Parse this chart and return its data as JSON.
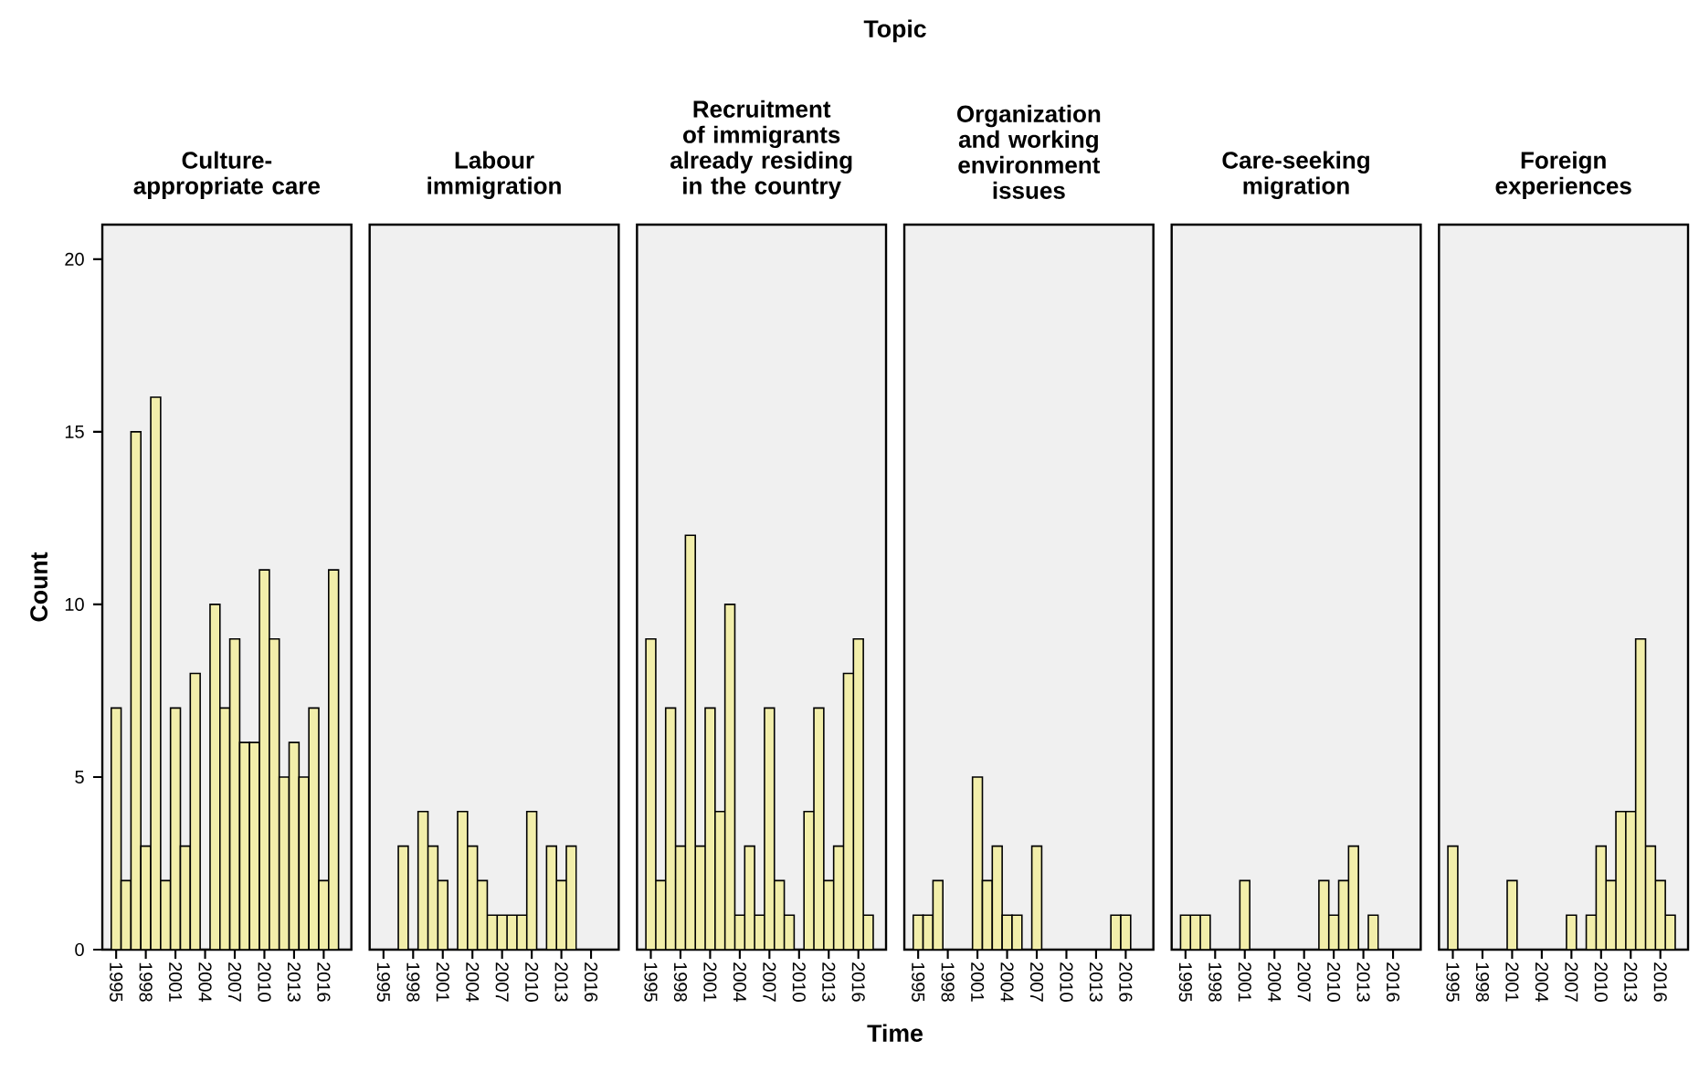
{
  "chart_data": [
    {
      "type": "bar",
      "title": "Culture-appropriate care",
      "annotations": [
        "Topic"
      ],
      "ylabel": "Count",
      "x": [
        1995,
        1996,
        1997,
        1998,
        1999,
        2000,
        2001,
        2002,
        2003,
        2005,
        2006,
        2007,
        2008,
        2009,
        2010,
        2011,
        2012,
        2013,
        2014,
        2015,
        2016,
        2017
      ],
      "values": [
        7,
        2,
        15,
        3,
        16,
        2,
        7,
        3,
        8,
        10,
        7,
        9,
        6,
        6,
        11,
        9,
        5,
        6,
        5,
        7,
        2,
        11
      ],
      "color": "#f2eeaa",
      "xlim": [
        1993.6,
        2018.8
      ],
      "xticks": [
        1995,
        1998,
        2001,
        2004,
        2007,
        2010,
        2013,
        2016
      ],
      "ylim": [
        0,
        21
      ],
      "yticks": [
        0,
        5,
        10,
        15,
        20
      ]
    },
    {
      "type": "bar",
      "title": "Labour immigration",
      "tick_labels": "x",
      "x": [
        1997,
        1999,
        2000,
        2001,
        2003,
        2004,
        2005,
        2006,
        2007,
        2008,
        2009,
        2010,
        2012,
        2013,
        2014
      ],
      "values": [
        3,
        4,
        3,
        2,
        4,
        3,
        2,
        1,
        1,
        1,
        1,
        4,
        3,
        2,
        3
      ],
      "color": "#f2eeaa",
      "xlim": [
        1993.6,
        2018.8
      ],
      "xticks": [
        1995,
        1998,
        2001,
        2004,
        2007,
        2010,
        2013,
        2016
      ],
      "ylim": [
        0,
        21
      ]
    },
    {
      "type": "bar",
      "title": "Recruitment of immigrants already residing in the country",
      "tick_labels": "x",
      "xlabel": "Time",
      "x": [
        1995,
        1996,
        1997,
        1998,
        1999,
        2000,
        2001,
        2002,
        2003,
        2004,
        2005,
        2006,
        2007,
        2008,
        2009,
        2011,
        2012,
        2013,
        2014,
        2015,
        2016,
        2017
      ],
      "values": [
        9,
        2,
        7,
        3,
        12,
        3,
        7,
        4,
        10,
        1,
        3,
        1,
        7,
        2,
        1,
        4,
        7,
        2,
        3,
        8,
        9,
        1
      ],
      "color": "#f2eeaa",
      "xlim": [
        1993.6,
        2018.8
      ],
      "xticks": [
        1995,
        1998,
        2001,
        2004,
        2007,
        2010,
        2013,
        2016
      ],
      "ylim": [
        0,
        21
      ]
    },
    {
      "type": "bar",
      "title": "Organization and working environment issues",
      "tick_labels": "x",
      "x": [
        1995,
        1996,
        1997,
        2001,
        2002,
        2003,
        2004,
        2005,
        2007,
        2015,
        2016
      ],
      "values": [
        1,
        1,
        2,
        5,
        2,
        3,
        1,
        1,
        3,
        1,
        1
      ],
      "color": "#f2eeaa",
      "xlim": [
        1993.6,
        2018.8
      ],
      "xticks": [
        1995,
        1998,
        2001,
        2004,
        2007,
        2010,
        2013,
        2016
      ],
      "ylim": [
        0,
        21
      ]
    },
    {
      "type": "bar",
      "title": "Care-seeking migration",
      "tick_labels": "x",
      "x": [
        1995,
        1996,
        1997,
        2001,
        2009,
        2010,
        2011,
        2012,
        2014
      ],
      "values": [
        1,
        1,
        1,
        2,
        2,
        1,
        2,
        3,
        1
      ],
      "color": "#f2eeaa",
      "xlim": [
        1993.6,
        2018.8
      ],
      "xticks": [
        1995,
        1998,
        2001,
        2004,
        2007,
        2010,
        2013,
        2016
      ],
      "ylim": [
        0,
        21
      ]
    },
    {
      "type": "bar",
      "title": "Foreign experiences",
      "tick_labels": "x",
      "x": [
        1995,
        2001,
        2007,
        2009,
        2010,
        2011,
        2012,
        2013,
        2014,
        2015,
        2016,
        2017
      ],
      "values": [
        3,
        2,
        1,
        1,
        3,
        2,
        4,
        4,
        9,
        3,
        2,
        1
      ],
      "color": "#f2eeaa",
      "xlim": [
        1993.6,
        2018.8
      ],
      "xticks": [
        1995,
        1998,
        2001,
        2004,
        2007,
        2010,
        2013,
        2016
      ],
      "ylim": [
        0,
        21
      ]
    }
  ]
}
